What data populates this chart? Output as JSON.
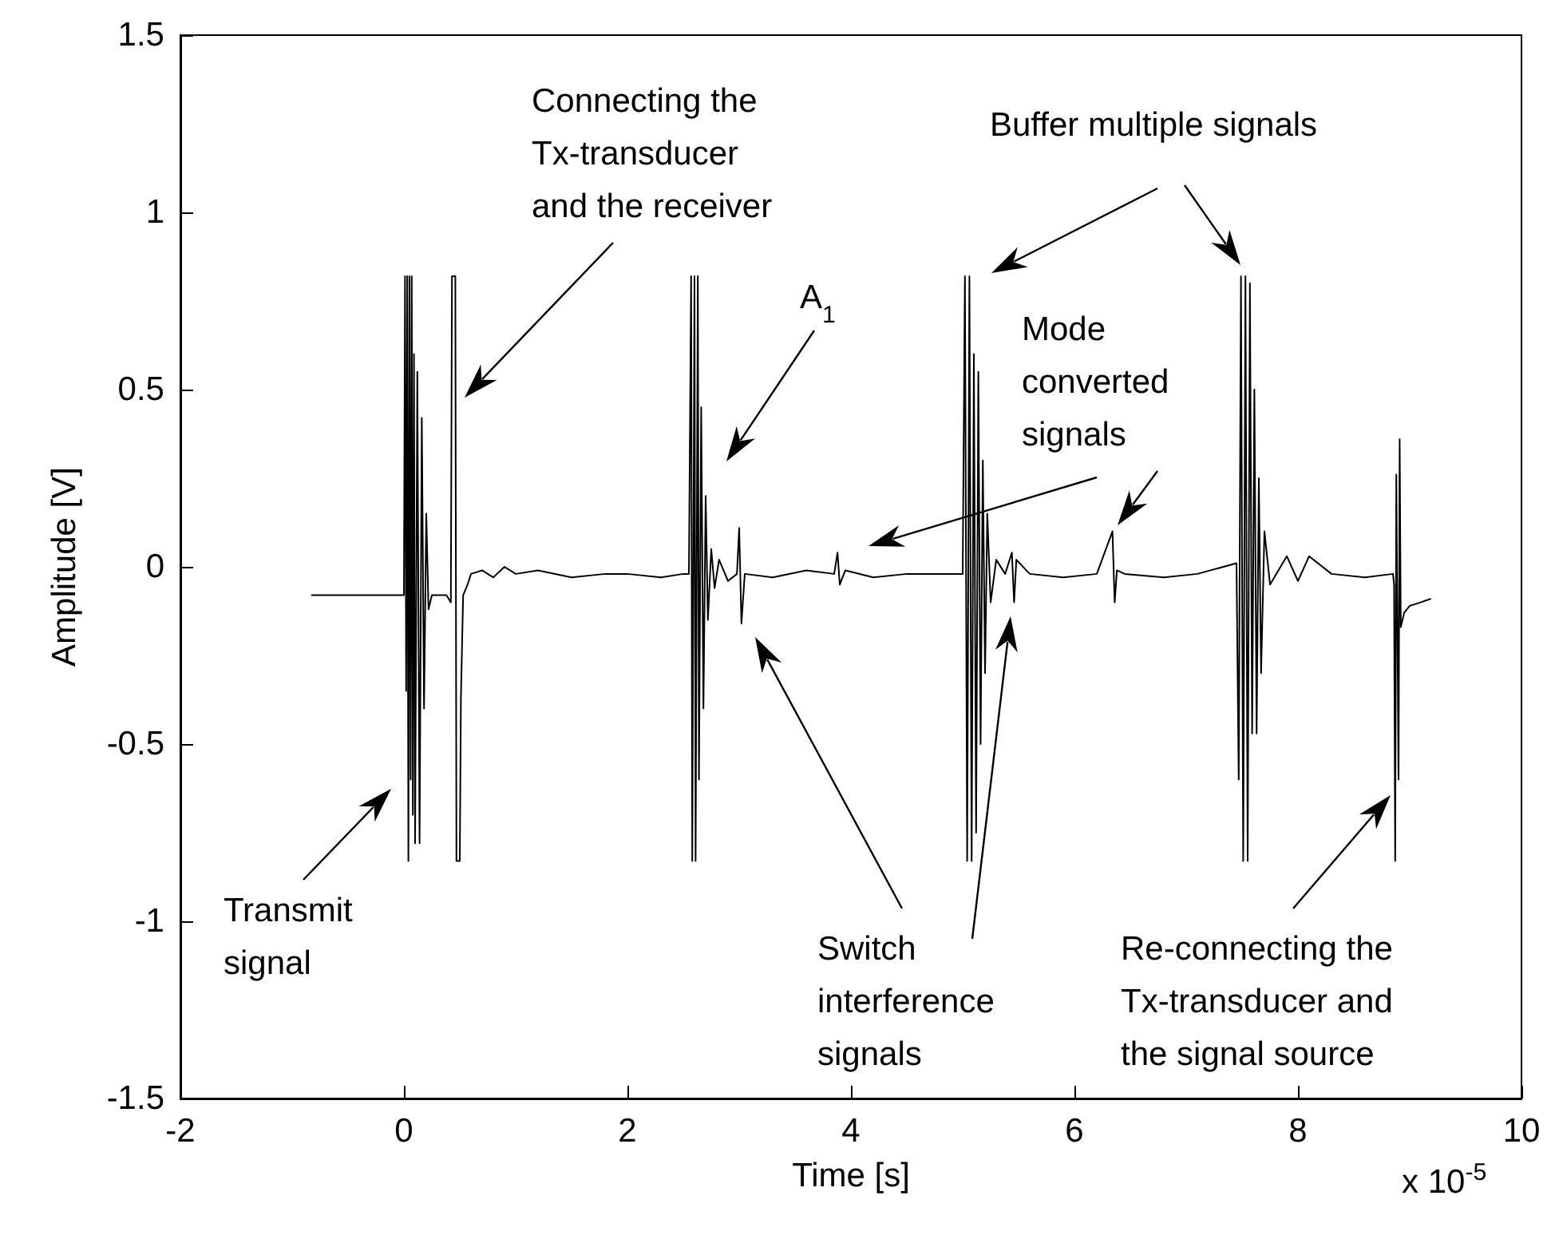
{
  "chart_data": {
    "type": "line",
    "xlabel": "Time [s]",
    "ylabel": "Amplitude [V]",
    "xlim": [
      -2,
      10
    ],
    "xticks": [
      -2,
      0,
      2,
      4,
      6,
      8,
      10
    ],
    "ylim": [
      -1.5,
      1.5
    ],
    "yticks": [
      -1.5,
      -1,
      -0.5,
      0,
      0.5,
      1,
      1.5
    ],
    "grid": false,
    "marker": "none",
    "line_style": "solid",
    "series": [
      {
        "color": "#000000",
        "x": [
          -0.83,
          0,
          0.01,
          0.02,
          0.03,
          0.04,
          0.05,
          0.06,
          0.07,
          0.08,
          0.09,
          0.1,
          0.12,
          0.14,
          0.16,
          0.18,
          0.2,
          0.22,
          0.25,
          0.38,
          0.42,
          0.43,
          0.46,
          0.47,
          0.5,
          0.51,
          0.53,
          0.57,
          0.6,
          0.7,
          0.8,
          0.9,
          1.0,
          1.2,
          1.5,
          1.8,
          2.0,
          2.3,
          2.5,
          2.55,
          2.57,
          2.58,
          2.6,
          2.61,
          2.63,
          2.64,
          2.66,
          2.68,
          2.7,
          2.72,
          2.75,
          2.78,
          2.82,
          2.9,
          2.98,
          3.0,
          3.02,
          3.05,
          3.3,
          3.6,
          3.85,
          3.88,
          3.9,
          3.95,
          4.2,
          4.5,
          4.8,
          5.0,
          5.02,
          5.04,
          5.06,
          5.08,
          5.1,
          5.12,
          5.14,
          5.16,
          5.18,
          5.2,
          5.22,
          5.25,
          5.3,
          5.38,
          5.44,
          5.46,
          5.48,
          5.6,
          5.9,
          6.2,
          6.34,
          6.36,
          6.38,
          6.45,
          6.8,
          7.1,
          7.45,
          7.47,
          7.49,
          7.51,
          7.53,
          7.55,
          7.57,
          7.59,
          7.61,
          7.63,
          7.65,
          7.67,
          7.7,
          7.75,
          7.9,
          8.0,
          8.1,
          8.3,
          8.6,
          8.85,
          8.86,
          8.87,
          8.88,
          8.9,
          8.91,
          8.92,
          8.95,
          9.0,
          9.1,
          9.19
        ],
        "values": [
          -0.08,
          -0.08,
          0.82,
          -0.35,
          0.82,
          -0.83,
          0.82,
          -0.6,
          0.82,
          -0.7,
          0.6,
          -0.78,
          0.55,
          -0.78,
          0.42,
          -0.4,
          0.15,
          -0.12,
          -0.08,
          -0.08,
          -0.1,
          0.82,
          0.82,
          -0.83,
          -0.83,
          -0.37,
          -0.08,
          -0.05,
          -0.02,
          -0.01,
          -0.03,
          0,
          -0.02,
          -0.01,
          -0.03,
          -0.02,
          -0.02,
          -0.03,
          -0.02,
          -0.02,
          0.82,
          -0.83,
          0.82,
          -0.83,
          0.82,
          -0.6,
          0.45,
          -0.4,
          0.2,
          -0.15,
          0.05,
          -0.06,
          0.02,
          -0.04,
          -0.02,
          0.11,
          -0.16,
          -0.02,
          -0.03,
          -0.01,
          -0.02,
          0.04,
          -0.05,
          -0.01,
          -0.03,
          -0.02,
          -0.02,
          -0.02,
          0.82,
          -0.83,
          0.82,
          -0.83,
          0.6,
          -0.75,
          0.55,
          -0.5,
          0.3,
          -0.3,
          0.15,
          -0.1,
          0.02,
          -0.02,
          0.04,
          -0.1,
          0.02,
          -0.02,
          -0.03,
          -0.02,
          0.1,
          -0.1,
          -0.01,
          -0.02,
          -0.03,
          -0.02,
          0.01,
          -0.6,
          0.82,
          -0.83,
          0.82,
          -0.83,
          0.8,
          -0.47,
          0.5,
          -0.47,
          0.25,
          -0.3,
          0.1,
          -0.05,
          0.03,
          -0.04,
          0.03,
          -0.02,
          -0.03,
          -0.02,
          -0.05,
          -0.83,
          0.26,
          -0.6,
          0.36,
          -0.17,
          -0.13,
          -0.11,
          -0.1,
          -0.09
        ]
      }
    ],
    "annotations": [
      "Transmit signal",
      "Connecting the Tx-transducer and the receiver",
      "A$_{1}$",
      "Buffer multiple signals",
      "Mode converted signals",
      "Switch interference signals",
      "Re-connecting the Tx-transducer and the signal source",
      "x 10$^{-5}$"
    ]
  }
}
